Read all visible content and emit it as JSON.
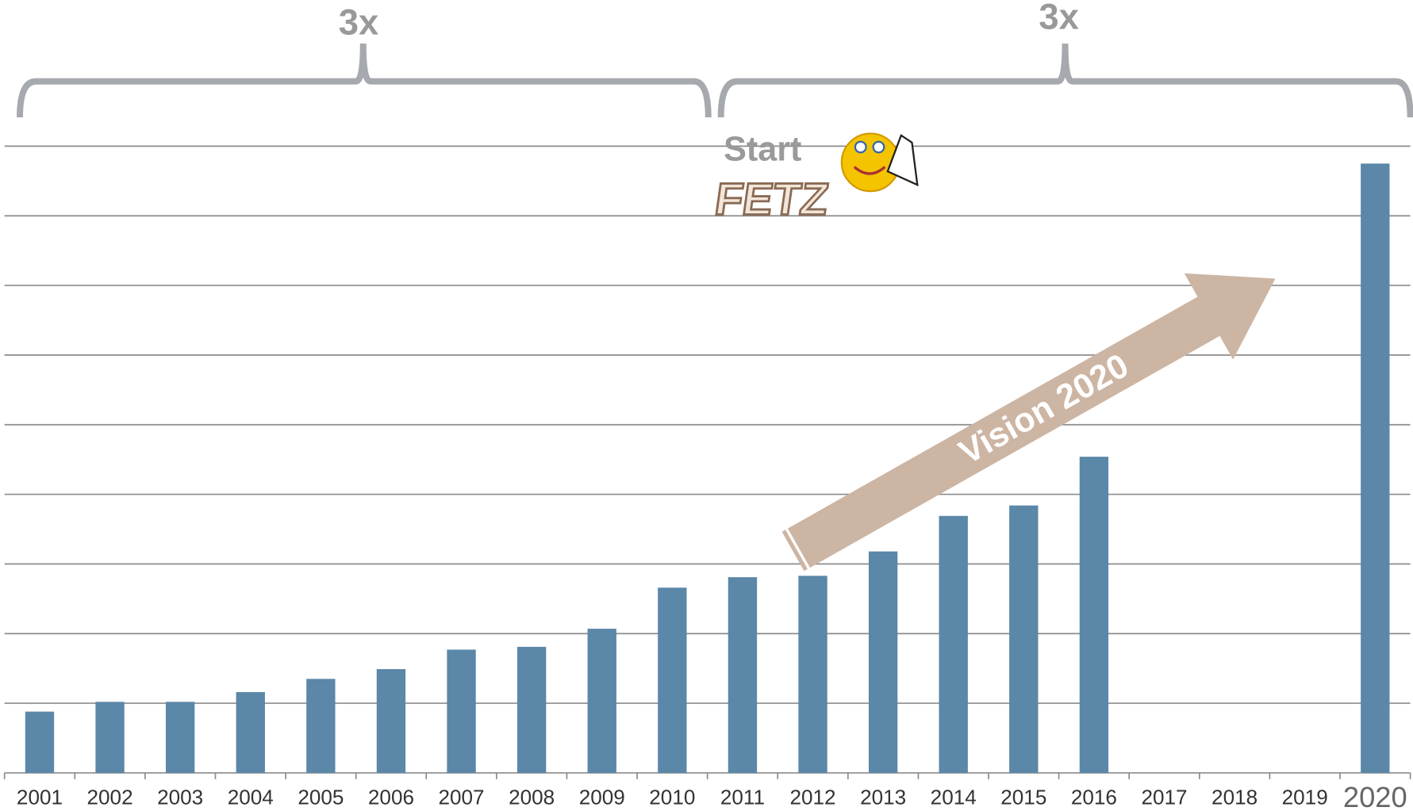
{
  "chart_data": {
    "type": "bar",
    "categories": [
      "2001",
      "2002",
      "2003",
      "2004",
      "2005",
      "2006",
      "2007",
      "2008",
      "2009",
      "2010",
      "2011",
      "2012",
      "2013",
      "2014",
      "2015",
      "2016",
      "2017",
      "2018",
      "2019",
      "2020"
    ],
    "values": [
      0.88,
      1.02,
      1.02,
      1.16,
      1.35,
      1.49,
      1.77,
      1.81,
      2.07,
      2.66,
      2.81,
      2.83,
      3.18,
      3.69,
      3.84,
      4.54,
      null,
      null,
      null,
      8.75
    ],
    "color": "#5b87a8",
    "ylim": [
      0,
      9
    ],
    "yticks": [
      0,
      1,
      2,
      3,
      4,
      5,
      6,
      7,
      8,
      9
    ],
    "grid": true,
    "annotations": {
      "left_growth": "3x",
      "right_growth": "3x",
      "start": "Start",
      "logo": "FETZ",
      "arrow": "Vision 2020"
    }
  }
}
